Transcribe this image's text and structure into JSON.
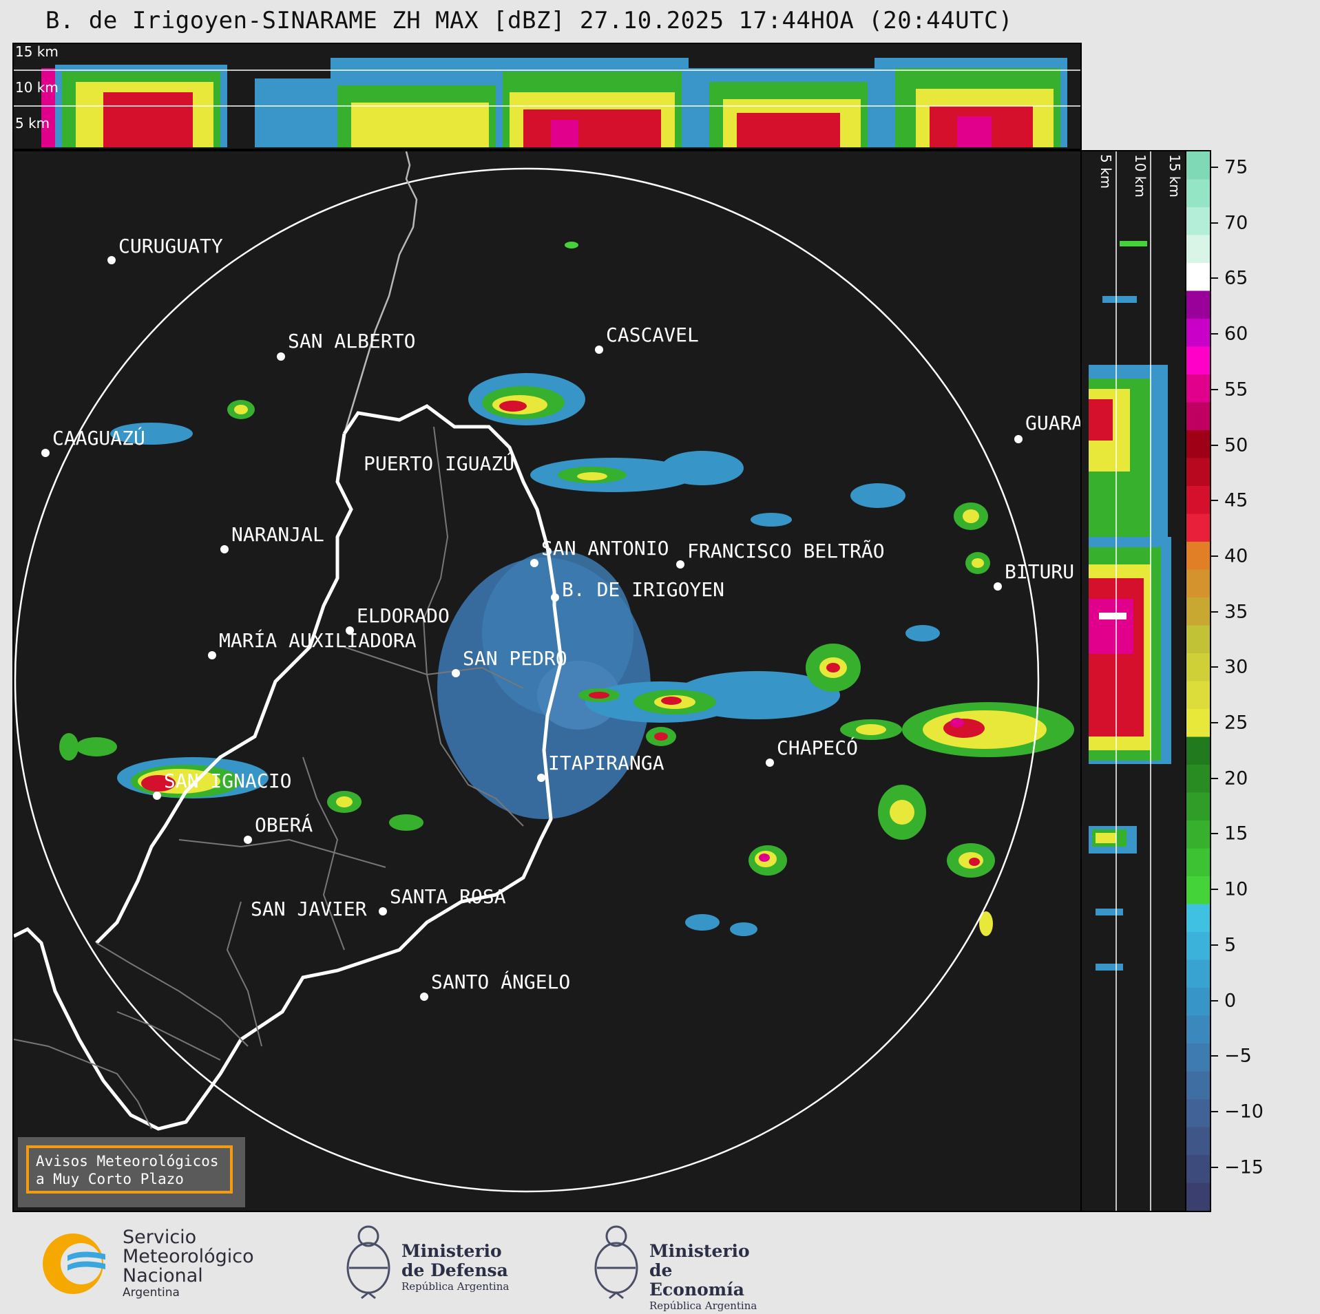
{
  "title": "B. de Irigoyen-SINARAME ZH MAX [dBZ] 27.10.2025 17:44HOA (20:44UTC)",
  "top_panel": {
    "height_labels": [
      "15 km",
      "10 km",
      "5 km"
    ]
  },
  "side_panel": {
    "height_labels": [
      "5 km",
      "10 km",
      "15 km"
    ]
  },
  "colorbar": {
    "unit": "dBZ",
    "ticks": [
      "75",
      "70",
      "65",
      "60",
      "55",
      "50",
      "45",
      "40",
      "35",
      "30",
      "25",
      "20",
      "15",
      "10",
      "5",
      "0",
      "−5",
      "−10",
      "−15"
    ],
    "colors": [
      "#3a3f6e",
      "#3d4a7c",
      "#3f5689",
      "#406296",
      "#3f6ea3",
      "#3d7bb0",
      "#3a88bc",
      "#3895c7",
      "#38a3d1",
      "#3ab2da",
      "#3fc2e1",
      "#44d43a",
      "#3dc233",
      "#36b02d",
      "#2f9e28",
      "#288c23",
      "#217a1e",
      "#e8e83a",
      "#dcdc3a",
      "#cfcf38",
      "#c2c236",
      "#c9a832",
      "#d4932c",
      "#e07f26",
      "#e8203a",
      "#d4102c",
      "#b8081f",
      "#a00016",
      "#c00060",
      "#e0008c",
      "#ff00c8",
      "#c800c8",
      "#9a009a",
      "#ffffff",
      "#d8f5e8",
      "#b4eed8",
      "#94e4c6",
      "#7fd8b6"
    ]
  },
  "cities": [
    {
      "name": "CURUGUATY"
    },
    {
      "name": "SAN ALBERTO"
    },
    {
      "name": "CASCAVEL"
    },
    {
      "name": "CAAGUAZÚ"
    },
    {
      "name": "GUARA"
    },
    {
      "name": "PUERTO IGUAZÚ"
    },
    {
      "name": "NARANJAL"
    },
    {
      "name": "SAN ANTONIO"
    },
    {
      "name": "FRANCISCO BELTRÃO"
    },
    {
      "name": "BITURU"
    },
    {
      "name": "B. DE IRIGOYEN"
    },
    {
      "name": "ELDORADO"
    },
    {
      "name": "MARÍA AUXILIADORA"
    },
    {
      "name": "SAN PEDRO"
    },
    {
      "name": "CHAPECÓ"
    },
    {
      "name": "ITAPIRANGA"
    },
    {
      "name": "SAN IGNACIO"
    },
    {
      "name": "OBERÁ"
    },
    {
      "name": "SAN JAVIER"
    },
    {
      "name": "SANTA ROSA"
    },
    {
      "name": "SANTO ÁNGELO"
    }
  ],
  "notice": {
    "line1": "Avisos Meteorológicos",
    "line2": "a Muy Corto Plazo"
  },
  "logos": {
    "smn": {
      "line1": "Servicio",
      "line2": "Meteorológico",
      "line3": "Nacional",
      "line4": "Argentina"
    },
    "defensa": {
      "line1": "Ministerio",
      "line2": "de Defensa",
      "sub": "República Argentina"
    },
    "economia": {
      "line1": "Ministerio",
      "line2": "de Economía",
      "sub": "República Argentina"
    }
  },
  "colors": {
    "background": "#e6e6e6",
    "panel": "#1a1a1a",
    "notice_border": "#f39c12",
    "smn_orange": "#f5a800",
    "smn_blue": "#3aa6e0"
  }
}
